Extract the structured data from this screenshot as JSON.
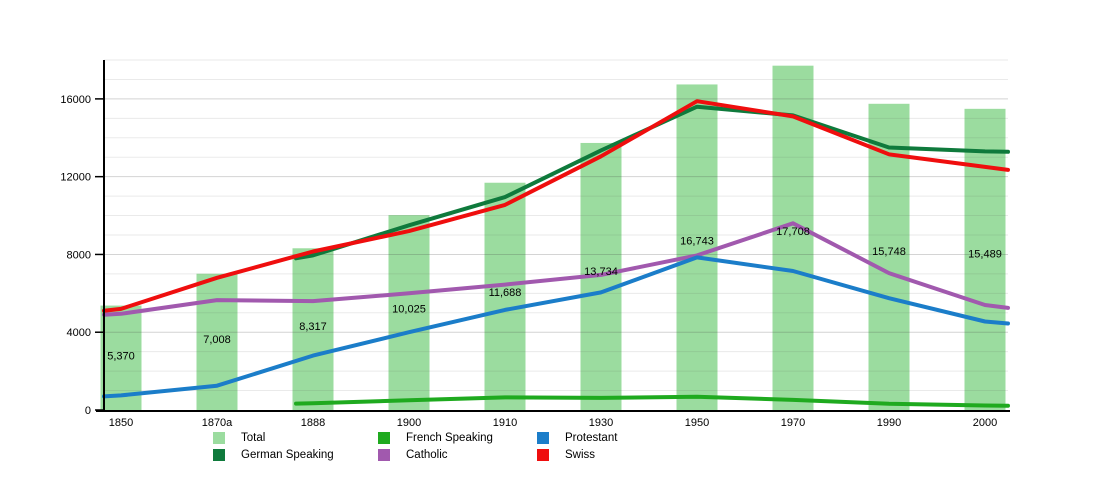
{
  "chart_data": {
    "type": "bar+line",
    "title": "",
    "categories": [
      "1850",
      "1870a",
      "1888",
      "1900",
      "1910",
      "1930",
      "1950",
      "1970",
      "1990",
      "2000"
    ],
    "total": {
      "name": "Total",
      "color": "#9bdc9f",
      "values": [
        5370,
        7008,
        8317,
        10025,
        11688,
        13734,
        16743,
        17708,
        15748,
        15489
      ],
      "value_labels": [
        "5,370",
        "7,008",
        "8,317",
        "10,025",
        "11,688",
        "13,734",
        "16,743",
        "17,708",
        "15,748",
        "15,489"
      ]
    },
    "series": [
      {
        "name": "German Speaking",
        "color": "#0f7a3c",
        "values": [
          null,
          null,
          7950,
          9500,
          10950,
          13350,
          15600,
          15150,
          13500,
          13300
        ],
        "pre_start_value": 7800,
        "edge_right_value": 13280
      },
      {
        "name": "French Speaking",
        "color": "#1faa1f",
        "values": [
          null,
          null,
          350,
          500,
          650,
          620,
          680,
          520,
          320,
          230
        ],
        "pre_start_value": 330,
        "edge_right_value": 220
      },
      {
        "name": "Catholic",
        "color": "#a159ae",
        "values": [
          4950,
          5650,
          5600,
          6000,
          6450,
          6950,
          7950,
          9600,
          7040,
          5400
        ],
        "edge_left_value": 4900,
        "edge_right_value": 5250
      },
      {
        "name": "Protestant",
        "color": "#1b7dc9",
        "values": [
          750,
          1250,
          2800,
          4000,
          5150,
          6050,
          7850,
          7150,
          5750,
          4550
        ],
        "edge_left_value": 700,
        "edge_right_value": 4450
      },
      {
        "name": "Swiss",
        "color": "#ef0e0e",
        "values": [
          5200,
          6800,
          8150,
          9200,
          10550,
          13050,
          15880,
          15100,
          13150,
          12500
        ],
        "edge_left_value": 5100,
        "edge_right_value": 12350
      }
    ],
    "y_axis": {
      "tick_values": [
        0,
        4000,
        8000,
        12000,
        16000
      ],
      "tick_labels": [
        "0",
        "4000",
        "8000",
        "12000",
        "16000"
      ],
      "max": 18000,
      "minor_gridline_step": 1000,
      "grid": true
    },
    "legend_position": "bottom"
  },
  "legend": {
    "columns": [
      {
        "rows": [
          {
            "label": "Total",
            "color": "#9bdc9f"
          },
          {
            "label": "German Speaking",
            "color": "#0f7a3c"
          }
        ]
      },
      {
        "rows": [
          {
            "label": "French Speaking",
            "color": "#1faa1f"
          },
          {
            "label": "Catholic",
            "color": "#a159ae"
          }
        ]
      },
      {
        "rows": [
          {
            "label": "Protestant",
            "color": "#1b7dc9"
          },
          {
            "label": "Swiss",
            "color": "#ef0e0e"
          }
        ]
      }
    ]
  }
}
